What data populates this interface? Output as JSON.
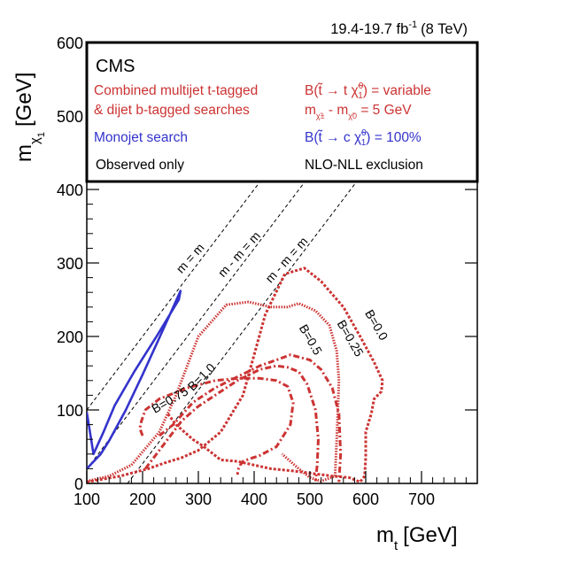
{
  "chart_data": {
    "type": "line",
    "title": "CMS",
    "lumi_label": "19.4-19.7 fb",
    "lumi_exp": "-1",
    "lumi_energy": "(8 TeV)",
    "xlabel": "m",
    "xlabel_sub": "t",
    "xlabel_unit": "[GeV]",
    "ylabel": "m",
    "ylabel_sub": "χ",
    "ylabel_unit": "[GeV]",
    "xlim": [
      100,
      800
    ],
    "ylim": [
      0,
      600
    ],
    "x_ticks": [
      100,
      200,
      300,
      400,
      500,
      600,
      700
    ],
    "y_ticks": [
      0,
      100,
      200,
      300,
      400,
      500,
      600
    ],
    "legend": {
      "red_line1": "Combined multijet t-tagged",
      "red_line2": "& dijet b-tagged searches",
      "blue": "Monojet search",
      "observed": "Observed only",
      "br_variable_pre": "B(",
      "br_variable_mid": " → t ",
      "br_variable_post": ") = variable",
      "mass_split_pre": "m",
      "mass_split_mid": " - m",
      "mass_split_post": " = 5 GeV",
      "br_charm_pre": "B(",
      "br_charm_mid": " → c ",
      "br_charm_post": ") = 100%",
      "exclusion": "NLO-NLL exclusion"
    },
    "diagonals": [
      {
        "label": "m = m",
        "offset": 0
      },
      {
        "label": "m - m = m",
        "offset": 80.4
      },
      {
        "label": "m - m = m",
        "offset": 173
      }
    ],
    "series": [
      {
        "name": "Monojet search",
        "color": "#3333cc",
        "style": "solid",
        "x": [
          100,
          110,
          125,
          135,
          140,
          170,
          200,
          230,
          255,
          268,
          265,
          225,
          185,
          150,
          130,
          112,
          100
        ],
        "y": [
          20,
          28,
          40,
          52,
          58,
          100,
          148,
          198,
          240,
          262,
          250,
          200,
          152,
          106,
          70,
          40,
          97
        ]
      },
      {
        "name": "B=0.0",
        "color": "#cc3333",
        "style": "dashed",
        "x": [
          100,
          160,
          210,
          240,
          270,
          300,
          340,
          380,
          420,
          455,
          490,
          520,
          560,
          590,
          615,
          630,
          628,
          615,
          610,
          600,
          600,
          598,
          590,
          570,
          540,
          520,
          500,
          470,
          430,
          400,
          370,
          340,
          310,
          290,
          260,
          245
        ],
        "y": [
          2,
          10,
          20,
          28,
          35,
          45,
          70,
          120,
          230,
          285,
          293,
          275,
          240,
          200,
          165,
          140,
          125,
          115,
          95,
          70,
          35,
          10,
          2,
          8,
          10,
          12,
          14,
          17,
          20,
          25,
          30,
          32,
          50,
          60,
          80,
          95
        ]
      },
      {
        "name": "B=0.25",
        "color": "#cc3333",
        "style": "dotted",
        "x": [
          100,
          140,
          180,
          230,
          260,
          300,
          350,
          390,
          430,
          460,
          480,
          510,
          535,
          548,
          552,
          550,
          548,
          545,
          520,
          500,
          480,
          450
        ],
        "y": [
          3,
          10,
          25,
          70,
          120,
          200,
          243,
          247,
          240,
          240,
          245,
          235,
          215,
          180,
          140,
          100,
          60,
          10,
          3,
          8,
          20,
          40
        ]
      },
      {
        "name": "B=0.5",
        "color": "#cc3333",
        "style": "dashdot",
        "x": [
          230,
          255,
          290,
          330,
          370,
          410,
          440,
          465,
          480,
          500,
          520,
          540,
          552,
          555,
          552
        ],
        "y": [
          65,
          80,
          110,
          130,
          145,
          160,
          168,
          175,
          172,
          168,
          155,
          130,
          95,
          40,
          2
        ]
      },
      {
        "name": "B=0.75",
        "color": "#cc3333",
        "style": "dashdot",
        "x": [
          205,
          240,
          270,
          300,
          330,
          370,
          410,
          440,
          460,
          480,
          495,
          510,
          515,
          513,
          510
        ],
        "y": [
          20,
          55,
          85,
          105,
          120,
          140,
          155,
          160,
          158,
          152,
          135,
          100,
          60,
          25,
          3
        ]
      },
      {
        "name": "B=1.0",
        "color": "#cc3333",
        "style": "dashdot",
        "x": [
          200,
          195,
          198,
          205,
          230,
          280,
          330,
          370,
          410,
          440,
          460,
          470,
          465,
          440,
          410,
          390,
          380,
          375,
          372,
          370
        ],
        "y": [
          65,
          75,
          85,
          100,
          115,
          130,
          140,
          143,
          143,
          140,
          132,
          110,
          80,
          50,
          38,
          33,
          30,
          25,
          20,
          12
        ]
      }
    ],
    "curve_labels": [
      {
        "text": "B=0.0",
        "x": 598,
        "y": 232,
        "angle": 60
      },
      {
        "text": "B=0.25",
        "x": 548,
        "y": 218,
        "angle": 60
      },
      {
        "text": "B=0.5",
        "x": 480,
        "y": 212,
        "angle": 60
      },
      {
        "text": "B=0.75",
        "x": 222,
        "y": 95,
        "angle": -30
      },
      {
        "text": "B=1.0",
        "x": 290,
        "y": 125,
        "angle": -45
      }
    ]
  }
}
